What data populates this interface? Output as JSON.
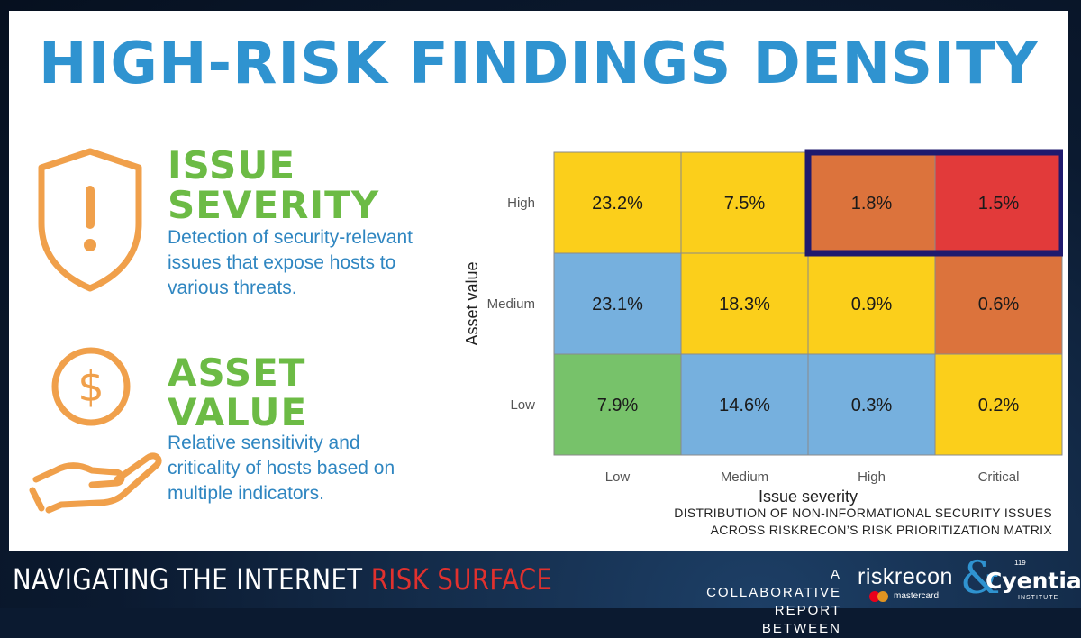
{
  "title": "HIGH-RISK FINDINGS DENSITY",
  "sections": [
    {
      "heading_line1": "ISSUE",
      "heading_line2": "SEVERITY",
      "description": "Detection of security-relevant issues that expose hosts to various threats.",
      "icon": "shield-exclamation-icon"
    },
    {
      "heading_line1": "ASSET",
      "heading_line2": "VALUE",
      "description": "Relative sensitivity and criticality of hosts based on multiple indicators.",
      "icon": "dollar-coin-hand-icon"
    }
  ],
  "chart_data": {
    "type": "heatmap",
    "xlabel": "Issue severity",
    "ylabel": "Asset value",
    "x_categories": [
      "Low",
      "Medium",
      "High",
      "Critical"
    ],
    "y_categories": [
      "High",
      "Medium",
      "Low"
    ],
    "values": [
      [
        23.2,
        7.5,
        1.8,
        1.5
      ],
      [
        23.1,
        18.3,
        0.9,
        0.6
      ],
      [
        7.9,
        14.6,
        0.3,
        0.2
      ]
    ],
    "labels": [
      [
        "23.2%",
        "7.5%",
        "1.8%",
        "1.5%"
      ],
      [
        "23.1%",
        "18.3%",
        "0.9%",
        "0.6%"
      ],
      [
        "7.9%",
        "14.6%",
        "0.3%",
        "0.2%"
      ]
    ],
    "cell_colors": [
      [
        "#fbcf1b",
        "#fbcf1b",
        "#dc733c",
        "#e23a3a"
      ],
      [
        "#76b0de",
        "#fbcf1b",
        "#fbcf1b",
        "#dc733c"
      ],
      [
        "#77c26a",
        "#76b0de",
        "#76b0de",
        "#fbcf1b"
      ]
    ],
    "highlight": {
      "row": "High",
      "columns": [
        "High",
        "Critical"
      ],
      "color": "#1f1a6e"
    },
    "caption_line1": "DISTRIBUTION OF NON-INFORMATIONAL SECURITY ISSUES",
    "caption_line2": "ACROSS RISKRECON’S RISK PRIORITIZATION MATRIX"
  },
  "footer": {
    "left_white": "NAVIGATING THE INTERNET ",
    "left_red": "RISK SURFACE",
    "collab_line1": "A COLLABORATIVE",
    "collab_line2": "REPORT BETWEEN",
    "riskrecon": "riskrecon",
    "mastercard": "mastercard",
    "ampersand": "&",
    "cyentia": "Cyentia",
    "cyentia_num": "119",
    "cyentia_sub": "INSTITUTE"
  },
  "colors": {
    "title": "#2f93d0",
    "heading": "#6cbb45",
    "description": "#2f86c1",
    "icon": "#f0a04b",
    "footer_red": "#e0312e"
  }
}
